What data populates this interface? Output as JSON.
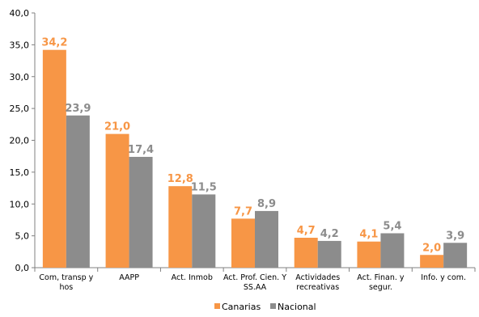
{
  "chart_data": {
    "type": "bar",
    "categories": [
      [
        "Com, transp y",
        "hos"
      ],
      [
        "AAPP"
      ],
      [
        "Act. Inmob"
      ],
      [
        "Act. Prof. Cien. Y",
        "SS.AA"
      ],
      [
        "Actividades",
        "recreativas"
      ],
      [
        "Act. Finan. y",
        "segur."
      ],
      [
        "Info. y com."
      ]
    ],
    "series": [
      {
        "name": "Canarias",
        "color": "#f79646",
        "label_color": "#f79646",
        "values": [
          34.2,
          21.0,
          12.8,
          7.7,
          4.7,
          4.1,
          2.0
        ],
        "labels": [
          "34,2",
          "21,0",
          "12,8",
          "7,7",
          "4,7",
          "4,1",
          "2,0"
        ]
      },
      {
        "name": "Nacional",
        "color": "#8c8c8c",
        "label_color": "#8c8c8c",
        "values": [
          23.9,
          17.4,
          11.5,
          8.9,
          4.2,
          5.4,
          3.9
        ],
        "labels": [
          "23,9",
          "17,4",
          "11,5",
          "8,9",
          "4,2",
          "5,4",
          "3,9"
        ]
      }
    ],
    "ylim": [
      0,
      40
    ],
    "yticks": [
      0,
      5,
      10,
      15,
      20,
      25,
      30,
      35,
      40
    ],
    "ytick_labels": [
      "0,0",
      "5,0",
      "10,0",
      "15,0",
      "20,0",
      "25,0",
      "30,0",
      "35,0",
      "40,0"
    ],
    "grid": false,
    "legend_position": "bottom"
  }
}
